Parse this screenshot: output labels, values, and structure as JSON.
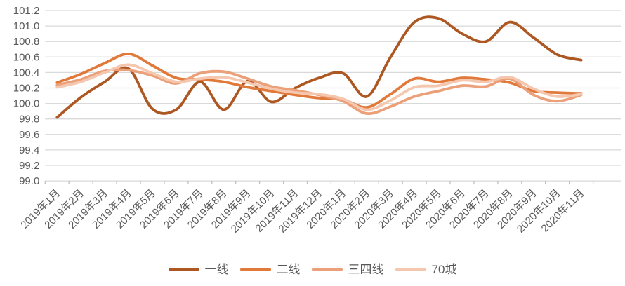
{
  "chart_data": {
    "type": "line",
    "title": "",
    "smooth": true,
    "grid": true,
    "legend_position": "bottom",
    "categories": [
      "2019年1月",
      "2019年2月",
      "2019年3月",
      "2019年4月",
      "2019年5月",
      "2019年6月",
      "2019年7月",
      "2019年8月",
      "2019年9月",
      "2019年10月",
      "2019年11月",
      "2019年12月",
      "2020年1月",
      "2020年2月",
      "2020年3月",
      "2020年4月",
      "2020年5月",
      "2020年6月",
      "2020年7月",
      "2020年8月",
      "2020年9月",
      "2020年10月",
      "2020年11月"
    ],
    "ylim": [
      99.0,
      101.2
    ],
    "ytick_step": 0.2,
    "xlabel": "",
    "ylabel": "",
    "series": [
      {
        "name": "一线",
        "color": "#ad5823",
        "values": [
          99.82,
          100.08,
          100.28,
          100.45,
          99.93,
          99.92,
          100.28,
          99.92,
          100.29,
          100.02,
          100.2,
          100.33,
          100.39,
          100.09,
          100.6,
          101.05,
          101.1,
          100.9,
          100.8,
          101.05,
          100.85,
          100.63,
          100.56
        ]
      },
      {
        "name": "二线",
        "color": "#e0793a",
        "values": [
          100.27,
          100.38,
          100.52,
          100.64,
          100.49,
          100.33,
          100.31,
          100.28,
          100.21,
          100.16,
          100.11,
          100.07,
          100.05,
          99.95,
          100.12,
          100.32,
          100.28,
          100.33,
          100.31,
          100.27,
          100.16,
          100.14,
          100.13
        ]
      },
      {
        "name": "三四线",
        "color": "#eca07a",
        "values": [
          100.24,
          100.31,
          100.42,
          100.43,
          100.36,
          100.26,
          100.39,
          100.41,
          100.32,
          100.22,
          100.17,
          100.11,
          100.03,
          99.87,
          99.96,
          100.09,
          100.16,
          100.23,
          100.22,
          100.32,
          100.11,
          100.03,
          100.11
        ]
      },
      {
        "name": "70城",
        "color": "#f5c7ae",
        "values": [
          100.21,
          100.28,
          100.4,
          100.5,
          100.39,
          100.28,
          100.32,
          100.34,
          100.27,
          100.19,
          100.14,
          100.12,
          100.06,
          99.92,
          100.04,
          100.21,
          100.23,
          100.3,
          100.28,
          100.34,
          100.19,
          100.09,
          100.12
        ]
      }
    ]
  },
  "style": {
    "grid_color": "#d9d9d9",
    "axis_color": "#c8c8c8",
    "tick_color": "#c0c0c0",
    "label_color": "#595959",
    "background": "#ffffff"
  }
}
